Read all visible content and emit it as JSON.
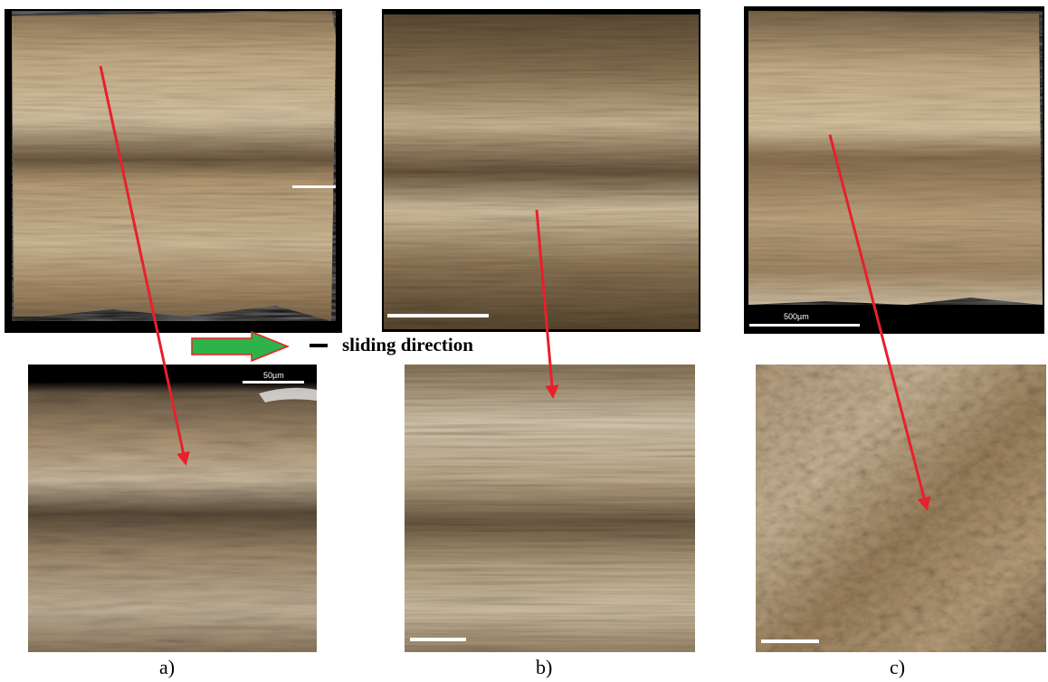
{
  "figure": {
    "legend_label": "sliding direction",
    "captions": [
      "a)",
      "b)",
      "c)"
    ],
    "scale_bar_labels": {
      "top_c": "500µm",
      "bottom_a": "50µm"
    },
    "colors": {
      "arrow_red": "#e8202a",
      "legend_arrow_green": "#2eb24a",
      "legend_arrow_border": "#e8202a",
      "surface_light": "#d8c8a8",
      "surface_mid": "#a88a64",
      "surface_dark": "#5a4630",
      "background_black": "#000000"
    }
  }
}
